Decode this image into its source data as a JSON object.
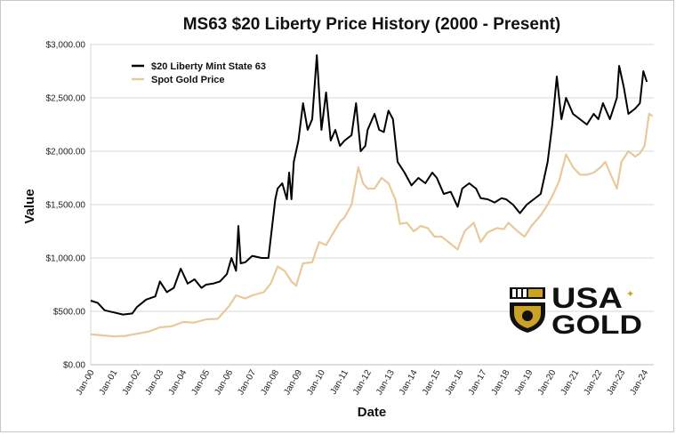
{
  "chart_data": {
    "type": "line",
    "title": "MS63 $20 Liberty Price History (2000 - Present)",
    "xlabel": "Date",
    "ylabel": "Value",
    "ylim": [
      0,
      3000
    ],
    "grid": "horizontal",
    "legend_position": "top-left",
    "y_ticks": [
      "$0.00",
      "$500.00",
      "$1,000.00",
      "$1,500.00",
      "$2,000.00",
      "$2,500.00",
      "$3,000.00"
    ],
    "x_ticks": [
      "Jan-00",
      "Jan-01",
      "Jan-02",
      "Jan-03",
      "Jan-04",
      "Jan-05",
      "Jan-06",
      "Jan-07",
      "Jan-08",
      "Jan-09",
      "Jan-10",
      "Jan-11",
      "Jan-12",
      "Jan-13",
      "Jan-14",
      "Jan-15",
      "Jan-16",
      "Jan-17",
      "Jan-18",
      "Jan-19",
      "Jan-20",
      "Jan-21",
      "Jan-22",
      "Jan-23",
      "Jan-24"
    ],
    "series": [
      {
        "name": "$20 Liberty Mint State 63",
        "color": "#000000",
        "points": [
          [
            2000.0,
            600
          ],
          [
            2000.3,
            580
          ],
          [
            2000.6,
            510
          ],
          [
            2001.0,
            490
          ],
          [
            2001.4,
            470
          ],
          [
            2001.8,
            480
          ],
          [
            2002.0,
            540
          ],
          [
            2002.4,
            610
          ],
          [
            2002.8,
            640
          ],
          [
            2003.0,
            780
          ],
          [
            2003.3,
            680
          ],
          [
            2003.6,
            720
          ],
          [
            2003.9,
            900
          ],
          [
            2004.2,
            760
          ],
          [
            2004.5,
            800
          ],
          [
            2004.8,
            720
          ],
          [
            2005.0,
            750
          ],
          [
            2005.3,
            760
          ],
          [
            2005.6,
            780
          ],
          [
            2005.9,
            850
          ],
          [
            2006.1,
            1000
          ],
          [
            2006.3,
            880
          ],
          [
            2006.4,
            1300
          ],
          [
            2006.5,
            950
          ],
          [
            2006.7,
            960
          ],
          [
            2007.0,
            1020
          ],
          [
            2007.4,
            1000
          ],
          [
            2007.7,
            1000
          ],
          [
            2008.0,
            1550
          ],
          [
            2008.1,
            1650
          ],
          [
            2008.3,
            1700
          ],
          [
            2008.5,
            1550
          ],
          [
            2008.6,
            1800
          ],
          [
            2008.7,
            1550
          ],
          [
            2008.8,
            1900
          ],
          [
            2009.0,
            2100
          ],
          [
            2009.2,
            2450
          ],
          [
            2009.4,
            2200
          ],
          [
            2009.6,
            2300
          ],
          [
            2009.8,
            2900
          ],
          [
            2010.0,
            2200
          ],
          [
            2010.2,
            2550
          ],
          [
            2010.4,
            2100
          ],
          [
            2010.6,
            2200
          ],
          [
            2010.8,
            2050
          ],
          [
            2011.0,
            2100
          ],
          [
            2011.3,
            2150
          ],
          [
            2011.5,
            2450
          ],
          [
            2011.7,
            2000
          ],
          [
            2011.9,
            2050
          ],
          [
            2012.0,
            2200
          ],
          [
            2012.3,
            2350
          ],
          [
            2012.5,
            2200
          ],
          [
            2012.7,
            2180
          ],
          [
            2012.9,
            2380
          ],
          [
            2013.1,
            2300
          ],
          [
            2013.3,
            1900
          ],
          [
            2013.6,
            1800
          ],
          [
            2013.9,
            1680
          ],
          [
            2014.2,
            1750
          ],
          [
            2014.5,
            1700
          ],
          [
            2014.8,
            1800
          ],
          [
            2015.0,
            1750
          ],
          [
            2015.3,
            1600
          ],
          [
            2015.6,
            1620
          ],
          [
            2015.9,
            1480
          ],
          [
            2016.1,
            1650
          ],
          [
            2016.4,
            1700
          ],
          [
            2016.7,
            1650
          ],
          [
            2016.9,
            1560
          ],
          [
            2017.2,
            1550
          ],
          [
            2017.5,
            1520
          ],
          [
            2017.8,
            1560
          ],
          [
            2018.0,
            1550
          ],
          [
            2018.3,
            1500
          ],
          [
            2018.6,
            1420
          ],
          [
            2018.9,
            1500
          ],
          [
            2019.2,
            1550
          ],
          [
            2019.5,
            1600
          ],
          [
            2019.8,
            1900
          ],
          [
            2020.0,
            2250
          ],
          [
            2020.2,
            2700
          ],
          [
            2020.4,
            2300
          ],
          [
            2020.6,
            2500
          ],
          [
            2020.9,
            2350
          ],
          [
            2021.2,
            2300
          ],
          [
            2021.5,
            2250
          ],
          [
            2021.8,
            2350
          ],
          [
            2022.0,
            2300
          ],
          [
            2022.2,
            2450
          ],
          [
            2022.5,
            2300
          ],
          [
            2022.8,
            2500
          ],
          [
            2022.9,
            2800
          ],
          [
            2023.1,
            2600
          ],
          [
            2023.3,
            2350
          ],
          [
            2023.6,
            2400
          ],
          [
            2023.8,
            2450
          ],
          [
            2023.95,
            2750
          ],
          [
            2024.1,
            2650
          ]
        ]
      },
      {
        "name": "Spot Gold Price",
        "color": "#E8C99A",
        "points": [
          [
            2000.0,
            285
          ],
          [
            2000.5,
            275
          ],
          [
            2001.0,
            265
          ],
          [
            2001.5,
            270
          ],
          [
            2002.0,
            290
          ],
          [
            2002.5,
            310
          ],
          [
            2003.0,
            350
          ],
          [
            2003.5,
            360
          ],
          [
            2004.0,
            400
          ],
          [
            2004.5,
            395
          ],
          [
            2005.0,
            425
          ],
          [
            2005.5,
            430
          ],
          [
            2006.0,
            550
          ],
          [
            2006.3,
            650
          ],
          [
            2006.7,
            620
          ],
          [
            2007.0,
            650
          ],
          [
            2007.5,
            680
          ],
          [
            2007.8,
            760
          ],
          [
            2008.1,
            920
          ],
          [
            2008.4,
            880
          ],
          [
            2008.7,
            780
          ],
          [
            2008.9,
            740
          ],
          [
            2009.2,
            950
          ],
          [
            2009.6,
            960
          ],
          [
            2009.9,
            1150
          ],
          [
            2010.2,
            1120
          ],
          [
            2010.5,
            1230
          ],
          [
            2010.8,
            1340
          ],
          [
            2011.0,
            1380
          ],
          [
            2011.3,
            1500
          ],
          [
            2011.6,
            1850
          ],
          [
            2011.8,
            1700
          ],
          [
            2012.0,
            1650
          ],
          [
            2012.3,
            1650
          ],
          [
            2012.6,
            1750
          ],
          [
            2012.9,
            1700
          ],
          [
            2013.2,
            1550
          ],
          [
            2013.4,
            1320
          ],
          [
            2013.7,
            1330
          ],
          [
            2014.0,
            1250
          ],
          [
            2014.3,
            1300
          ],
          [
            2014.6,
            1280
          ],
          [
            2014.9,
            1200
          ],
          [
            2015.2,
            1200
          ],
          [
            2015.5,
            1150
          ],
          [
            2015.9,
            1080
          ],
          [
            2016.2,
            1250
          ],
          [
            2016.6,
            1330
          ],
          [
            2016.9,
            1150
          ],
          [
            2017.2,
            1240
          ],
          [
            2017.6,
            1280
          ],
          [
            2017.9,
            1270
          ],
          [
            2018.1,
            1330
          ],
          [
            2018.5,
            1250
          ],
          [
            2018.8,
            1200
          ],
          [
            2019.1,
            1300
          ],
          [
            2019.5,
            1400
          ],
          [
            2019.8,
            1500
          ],
          [
            2020.0,
            1580
          ],
          [
            2020.3,
            1720
          ],
          [
            2020.6,
            1970
          ],
          [
            2020.9,
            1850
          ],
          [
            2021.2,
            1780
          ],
          [
            2021.5,
            1780
          ],
          [
            2021.8,
            1800
          ],
          [
            2022.1,
            1850
          ],
          [
            2022.3,
            1900
          ],
          [
            2022.6,
            1750
          ],
          [
            2022.8,
            1650
          ],
          [
            2023.0,
            1900
          ],
          [
            2023.3,
            2000
          ],
          [
            2023.6,
            1950
          ],
          [
            2023.8,
            1980
          ],
          [
            2024.0,
            2050
          ],
          [
            2024.2,
            2350
          ],
          [
            2024.35,
            2330
          ]
        ]
      }
    ]
  },
  "logo": {
    "line1": "USA",
    "line2": "GOLD",
    "colors": {
      "gold": "#C9A227",
      "dark": "#111111"
    }
  }
}
